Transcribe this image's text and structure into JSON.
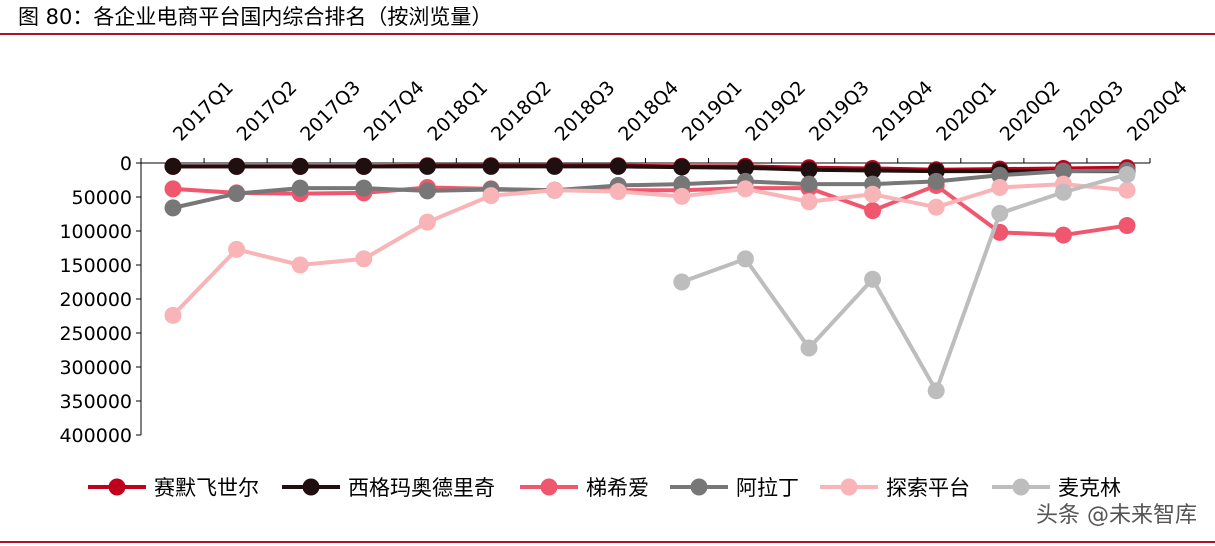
{
  "figure": {
    "title": "图 80：各企业电商平台国内综合排名（按浏览量）",
    "watermark": "头条 @未来智库"
  },
  "chart_data": {
    "type": "line",
    "x": [
      "2017Q1",
      "2017Q2",
      "2017Q3",
      "2017Q4",
      "2018Q1",
      "2018Q2",
      "2018Q3",
      "2018Q4",
      "2019Q1",
      "2019Q2",
      "2019Q3",
      "2019Q4",
      "2020Q1",
      "2020Q2",
      "2020Q3",
      "2020Q4"
    ],
    "yticks": [
      "0",
      "50000",
      "100000",
      "150000",
      "200000",
      "250000",
      "300000",
      "350000",
      "400000"
    ],
    "ylim": [
      0,
      400000
    ],
    "y_inverted": true,
    "legend_position": "bottom",
    "series": [
      {
        "name": "赛默飞世尔",
        "color": "#c0001c",
        "values": [
          5000,
          5000,
          5000,
          5000,
          4000,
          4000,
          4000,
          4000,
          5000,
          5000,
          7000,
          8000,
          10000,
          9000,
          8000,
          7000
        ]
      },
      {
        "name": "西格玛奥德里奇",
        "color": "#1f0f0f",
        "values": [
          5000,
          5000,
          5000,
          5000,
          5000,
          5000,
          5000,
          5000,
          6000,
          7000,
          10000,
          11000,
          12000,
          12000,
          12000,
          12000
        ]
      },
      {
        "name": "梯希爱",
        "color": "#f0566e",
        "values": [
          38000,
          44000,
          45000,
          44000,
          36000,
          38000,
          40000,
          40000,
          40000,
          37000,
          37000,
          70000,
          33000,
          102000,
          106000,
          92000
        ]
      },
      {
        "name": "阿拉丁",
        "color": "#777777",
        "values": [
          66000,
          45000,
          37000,
          37000,
          41000,
          39000,
          40000,
          33000,
          31000,
          27000,
          31000,
          31000,
          27000,
          18000,
          12000,
          11000
        ]
      },
      {
        "name": "探索平台",
        "color": "#f8b4b6",
        "values": [
          224000,
          127000,
          150000,
          141000,
          87000,
          48000,
          40000,
          42000,
          49000,
          38000,
          57000,
          46000,
          65000,
          36000,
          31000,
          40000
        ]
      },
      {
        "name": "麦克林",
        "color": "#bdbdbd",
        "values": [
          null,
          null,
          null,
          null,
          null,
          null,
          null,
          null,
          175000,
          141000,
          272000,
          171000,
          335000,
          74000,
          43000,
          17000
        ]
      }
    ]
  }
}
